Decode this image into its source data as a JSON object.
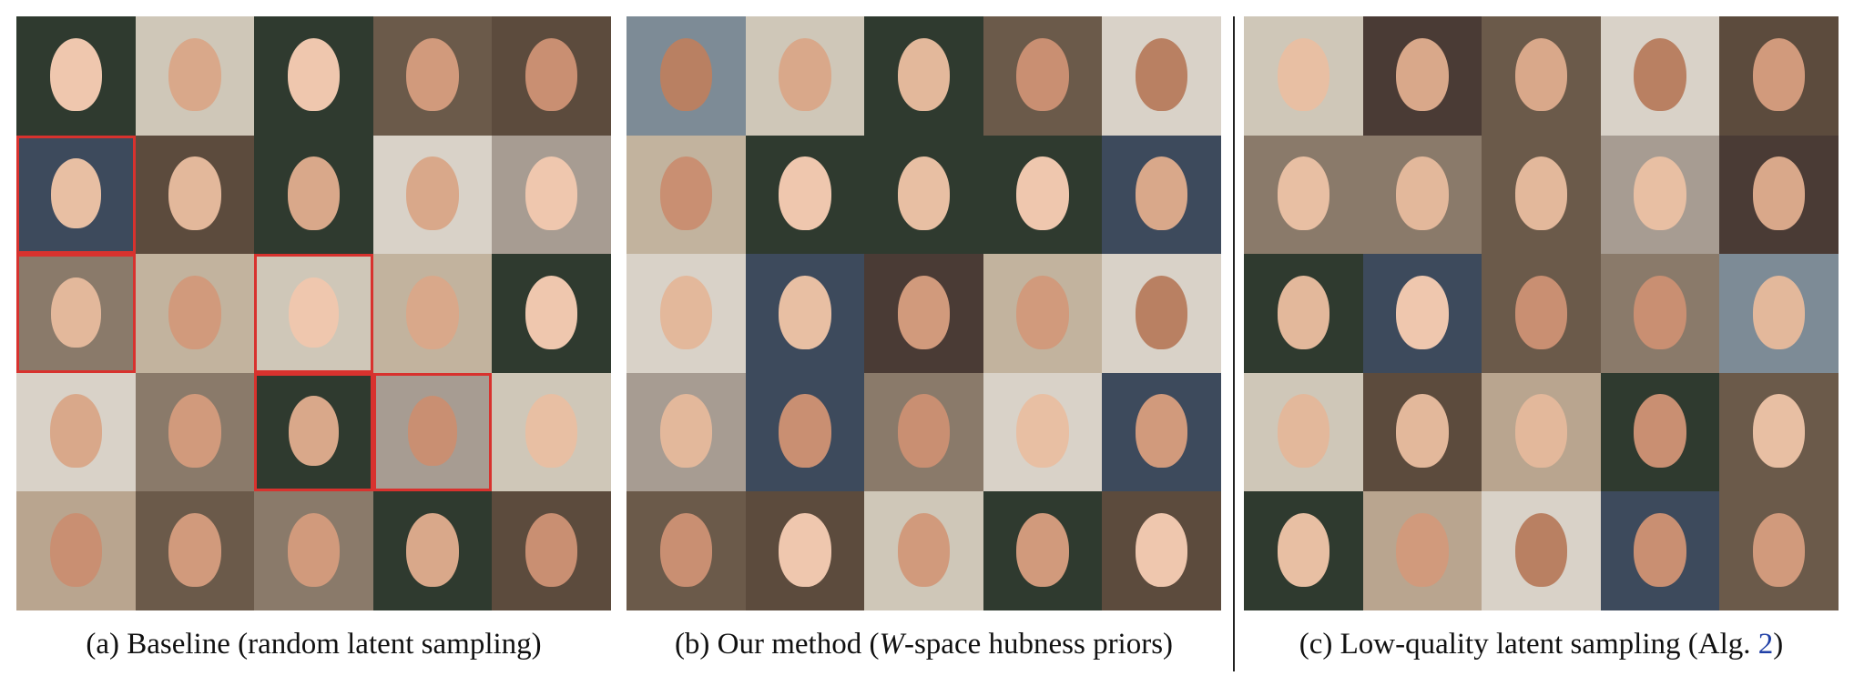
{
  "figure": {
    "panels": [
      {
        "caption": {
          "text": "(a) Baseline (random latent sampling)"
        }
      },
      {
        "caption": {
          "prefix": "(b) Our method (",
          "italic": "W",
          "suffix": "-space hubness priors)"
        }
      },
      {
        "caption": {
          "prefix": "(c) Low-quality latent sampling (Alg. ",
          "link": "2",
          "suffix": ")"
        }
      }
    ]
  }
}
